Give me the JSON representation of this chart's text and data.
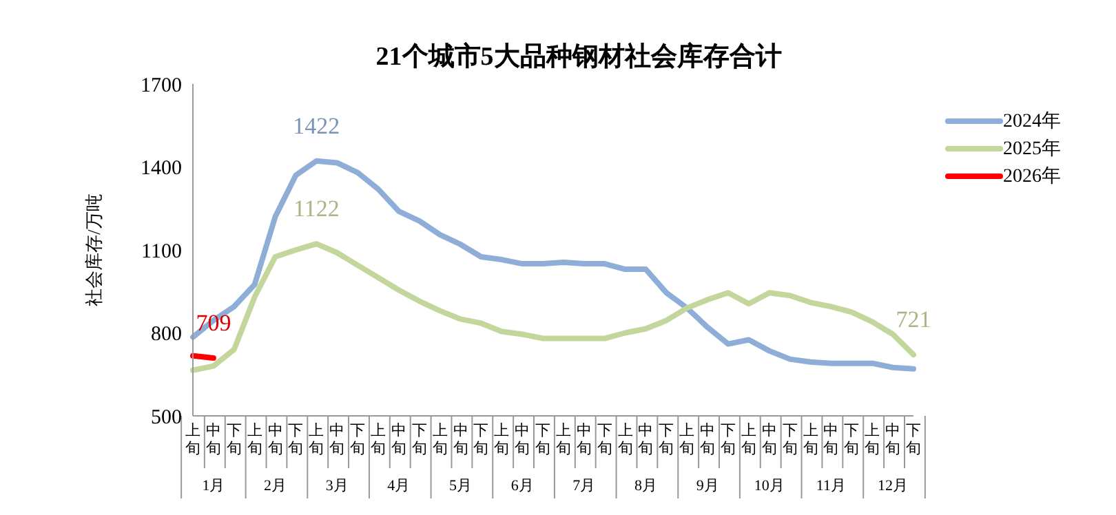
{
  "chart_data": {
    "type": "line",
    "title": "21个城市5大品种钢材社会库存合计",
    "ylabel": "社会库存/万吨",
    "categories": [
      "上旬",
      "中旬",
      "下旬",
      "上旬",
      "中旬",
      "下旬",
      "上旬",
      "中旬",
      "下旬",
      "上旬",
      "中旬",
      "下旬",
      "上旬",
      "中旬",
      "下旬",
      "上旬",
      "中旬",
      "下旬",
      "上旬",
      "中旬",
      "下旬",
      "上旬",
      "中旬",
      "下旬",
      "上旬",
      "中旬",
      "下旬",
      "上旬",
      "中旬",
      "下旬",
      "上旬",
      "中旬",
      "下旬",
      "上旬",
      "中旬",
      "下旬"
    ],
    "annotations": [
      "1月",
      "2月",
      "3月",
      "4月",
      "5月",
      "6月",
      "7月",
      "8月",
      "9月",
      "10月",
      "11月",
      "12月"
    ],
    "series": [
      {
        "name": "2024年",
        "color": "#8eaed8",
        "values": [
          785,
          845,
          895,
          975,
          1220,
          1370,
          1422,
          1415,
          1380,
          1320,
          1240,
          1205,
          1155,
          1120,
          1075,
          1065,
          1050,
          1050,
          1055,
          1050,
          1050,
          1030,
          1030,
          945,
          890,
          820,
          760,
          775,
          735,
          705,
          695,
          690,
          690,
          690,
          675,
          670
        ],
        "value_labels": [
          null,
          null,
          null,
          null,
          null,
          null,
          "1422",
          null,
          null,
          null,
          null,
          null,
          null,
          null,
          null,
          null,
          null,
          null,
          null,
          null,
          null,
          null,
          null,
          null,
          null,
          null,
          null,
          null,
          null,
          null,
          null,
          null,
          null,
          null,
          null,
          null
        ]
      },
      {
        "name": "2025年",
        "color": "#c3d69b",
        "values": [
          665,
          680,
          740,
          930,
          1075,
          1100,
          1122,
          1090,
          1045,
          1000,
          955,
          915,
          880,
          850,
          835,
          805,
          795,
          780,
          780,
          780,
          780,
          800,
          815,
          845,
          890,
          920,
          945,
          905,
          945,
          935,
          910,
          895,
          875,
          840,
          795,
          721
        ],
        "value_labels": [
          null,
          null,
          null,
          null,
          null,
          null,
          "1122",
          null,
          null,
          null,
          null,
          null,
          null,
          null,
          null,
          null,
          null,
          null,
          null,
          null,
          null,
          null,
          null,
          null,
          null,
          null,
          null,
          null,
          null,
          null,
          null,
          null,
          null,
          null,
          null,
          "721"
        ]
      },
      {
        "name": "2026年",
        "color": "#ff0000",
        "values": [
          717,
          709,
          null,
          null,
          null,
          null,
          null,
          null,
          null,
          null,
          null,
          null,
          null,
          null,
          null,
          null,
          null,
          null,
          null,
          null,
          null,
          null,
          null,
          null,
          null,
          null,
          null,
          null,
          null,
          null,
          null,
          null,
          null,
          null,
          null,
          null
        ],
        "value_labels": [
          null,
          "709",
          null,
          null,
          null,
          null,
          null,
          null,
          null,
          null,
          null,
          null,
          null,
          null,
          null,
          null,
          null,
          null,
          null,
          null,
          null,
          null,
          null,
          null,
          null,
          null,
          null,
          null,
          null,
          null,
          null,
          null,
          null,
          null,
          null,
          null
        ]
      }
    ],
    "ylim": [
      500,
      1700
    ],
    "yticks": [
      500,
      800,
      1100,
      1400,
      1700
    ],
    "grid": false,
    "legend": "top right",
    "marker": "none",
    "line_style": "solid"
  }
}
